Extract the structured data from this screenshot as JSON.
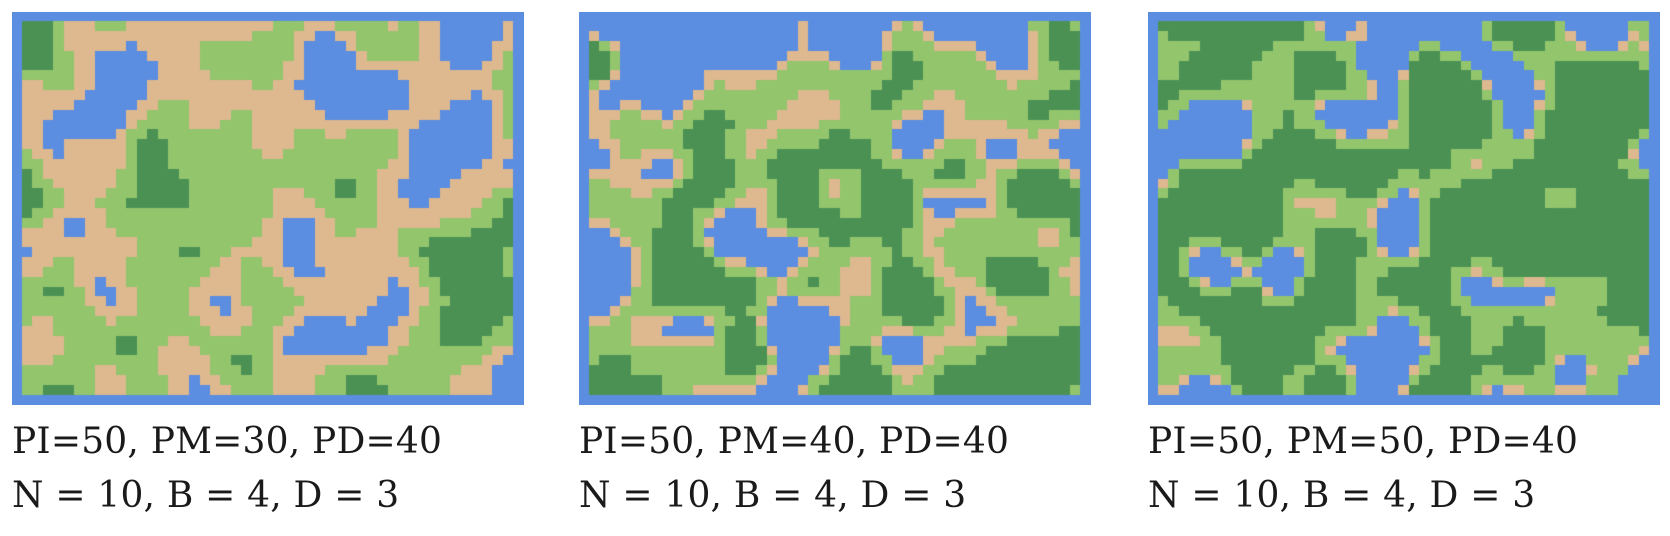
{
  "colors": {
    "water": "#5b8de0",
    "sand": "#deb88e",
    "grass": "#93c56d",
    "forest": "#4b9154"
  },
  "panels": [
    {
      "params_label": "PI=50, PM=30, PD=40",
      "settings_label": "N = 10, B = 4, D = 3",
      "map_seed": 11,
      "terrain_mix": {
        "water": 0.24,
        "sand": 0.34,
        "grass": 0.34,
        "forest": 0.08
      }
    },
    {
      "params_label": "PI=50, PM=40, PD=40",
      "settings_label": "N = 10, B = 4, D = 3",
      "map_seed": 27,
      "terrain_mix": {
        "water": 0.28,
        "sand": 0.16,
        "grass": 0.32,
        "forest": 0.24
      }
    },
    {
      "params_label": "PI=50, PM=50, PD=40",
      "settings_label": "N = 10, B = 4, D = 3",
      "map_seed": 53,
      "terrain_mix": {
        "water": 0.25,
        "sand": 0.04,
        "grass": 0.25,
        "forest": 0.46
      }
    }
  ]
}
